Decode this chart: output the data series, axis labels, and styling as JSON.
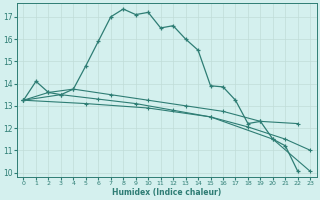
{
  "xlabel": "Humidex (Indice chaleur)",
  "bg_color": "#d4f0ee",
  "line_color": "#2e7d74",
  "grid_color": "#c0ddd8",
  "xlim": [
    -0.5,
    23.5
  ],
  "ylim": [
    9.8,
    17.6
  ],
  "yticks": [
    10,
    11,
    12,
    13,
    14,
    15,
    16,
    17
  ],
  "xticks": [
    0,
    1,
    2,
    3,
    4,
    5,
    6,
    7,
    8,
    9,
    10,
    11,
    12,
    13,
    14,
    15,
    16,
    17,
    18,
    19,
    20,
    21,
    22,
    23
  ],
  "line1": [
    [
      0,
      13.25
    ],
    [
      1,
      14.1
    ],
    [
      2,
      13.6
    ],
    [
      3,
      13.5
    ],
    [
      4,
      13.75
    ],
    [
      5,
      14.8
    ],
    [
      6,
      15.9
    ],
    [
      7,
      17.0
    ],
    [
      8,
      17.35
    ],
    [
      9,
      17.1
    ],
    [
      10,
      17.2
    ],
    [
      11,
      16.5
    ],
    [
      12,
      16.6
    ],
    [
      13,
      16.0
    ],
    [
      14,
      15.5
    ],
    [
      15,
      13.9
    ],
    [
      16,
      13.85
    ],
    [
      17,
      13.25
    ],
    [
      18,
      12.2
    ],
    [
      19,
      12.3
    ],
    [
      20,
      11.5
    ],
    [
      21,
      11.2
    ],
    [
      22,
      10.05
    ]
  ],
  "line2": [
    [
      0,
      13.25
    ],
    [
      2,
      13.6
    ],
    [
      4,
      13.75
    ],
    [
      7,
      13.5
    ],
    [
      10,
      13.25
    ],
    [
      13,
      13.0
    ],
    [
      16,
      12.75
    ],
    [
      19,
      12.3
    ],
    [
      22,
      12.2
    ]
  ],
  "line3": [
    [
      0,
      13.25
    ],
    [
      3,
      13.5
    ],
    [
      6,
      13.3
    ],
    [
      9,
      13.1
    ],
    [
      12,
      12.8
    ],
    [
      15,
      12.5
    ],
    [
      18,
      12.05
    ],
    [
      21,
      11.5
    ],
    [
      23,
      11.0
    ]
  ],
  "line4": [
    [
      0,
      13.25
    ],
    [
      5,
      13.1
    ],
    [
      10,
      12.9
    ],
    [
      15,
      12.5
    ],
    [
      20,
      11.5
    ],
    [
      23,
      10.05
    ]
  ]
}
